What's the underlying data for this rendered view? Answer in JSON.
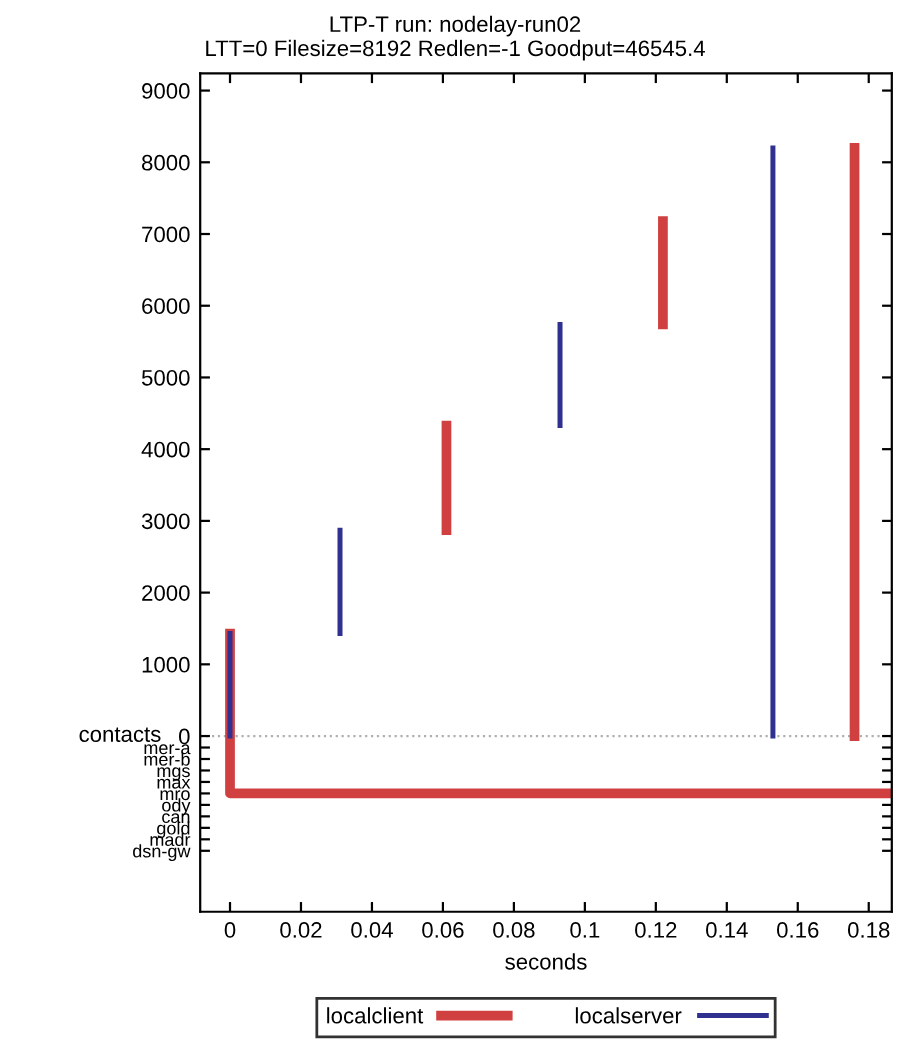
{
  "chart_data": {
    "type": "line",
    "title": "LTP-T run: nodelay-run02",
    "subtitle": "LTT=0 Filesize=8192 Redlen=-1 Goodput=46545.4",
    "xlabel": "seconds",
    "series": [
      {
        "name": "localclient",
        "color": "#d04040",
        "x": [
          0,
          0,
          null,
          0.061,
          0.061,
          null,
          0.122,
          0.122,
          null,
          0.176,
          0.176,
          null,
          0,
          0,
          0.1865
        ],
        "values": [
          0,
          1430,
          null,
          2870,
          4330,
          null,
          5740,
          7180,
          null,
          0,
          8200,
          null,
          0,
          -800,
          -800
        ]
      },
      {
        "name": "localserver",
        "color": "#303090",
        "x": [
          0,
          0,
          null,
          0.031,
          0.031,
          null,
          0.093,
          0.093,
          null,
          0.153,
          0.153
        ],
        "values": [
          0,
          1430,
          null,
          1430,
          2870,
          null,
          4330,
          5740,
          null,
          0,
          8200
        ]
      }
    ],
    "xlim": [
      -0.0084,
      0.1865
    ],
    "xticks": [
      0,
      0.02,
      0.04,
      0.06,
      0.08,
      0.1,
      0.12,
      0.14,
      0.16,
      0.18
    ],
    "ylim": [
      -2450,
      9240
    ],
    "yticks": [
      0,
      1000,
      2000,
      3000,
      4000,
      5000,
      6000,
      7000,
      8000,
      9000,
      {
        "value": -160,
        "label": "mer-a"
      },
      {
        "value": -320,
        "label": "mer-b"
      },
      {
        "value": -480,
        "label": "mgs"
      },
      {
        "value": -640,
        "label": "max"
      },
      {
        "value": -800,
        "label": "mro"
      },
      {
        "value": -960,
        "label": "ody"
      },
      {
        "value": -1120,
        "label": "can"
      },
      {
        "value": -1280,
        "label": "gold"
      },
      {
        "value": -1440,
        "label": "madr"
      },
      {
        "value": -1600,
        "label": "dsn-gw"
      }
    ],
    "ref_lines": [
      {
        "axis": "y",
        "value": 0,
        "color": "#b0b0b0",
        "line_style": "dotted"
      }
    ],
    "annotations": [
      "contacts"
    ],
    "legend": "bottom",
    "grid": false,
    "marker": "none",
    "line_style": "solid"
  }
}
